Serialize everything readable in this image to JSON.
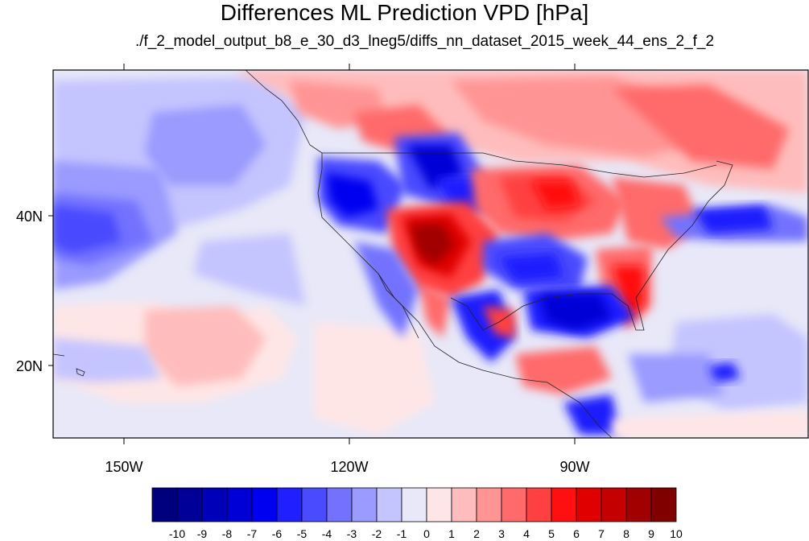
{
  "title": "Differences ML Prediction VPD [hPa]",
  "subtitle": "./f_2_model_output_b8_e_30_d3_lneg5/diffs_nn_dataset_2015_week_44_ens_2_f_2",
  "axes": {
    "lat_labels": [
      "40N",
      "20N"
    ],
    "lon_labels": [
      "150W",
      "120W",
      "90W"
    ]
  },
  "colorbar": {
    "labels": [
      "-10",
      "-9",
      "-8",
      "-7",
      "-6",
      "-5",
      "-4",
      "-3",
      "-2",
      "-1",
      "0",
      "1",
      "2",
      "3",
      "4",
      "5",
      "6",
      "7",
      "8",
      "9",
      "10"
    ],
    "colors": [
      "#00007f",
      "#000099",
      "#0000b8",
      "#0000d6",
      "#0000f0",
      "#1f1fff",
      "#4a4aff",
      "#7272ff",
      "#9a9aff",
      "#c4c4ff",
      "#e8e8f8",
      "#ffe6e6",
      "#ffbcbc",
      "#ff9494",
      "#ff6a6a",
      "#ff4040",
      "#ff1010",
      "#e00000",
      "#c40000",
      "#a00000",
      "#800000"
    ]
  }
}
